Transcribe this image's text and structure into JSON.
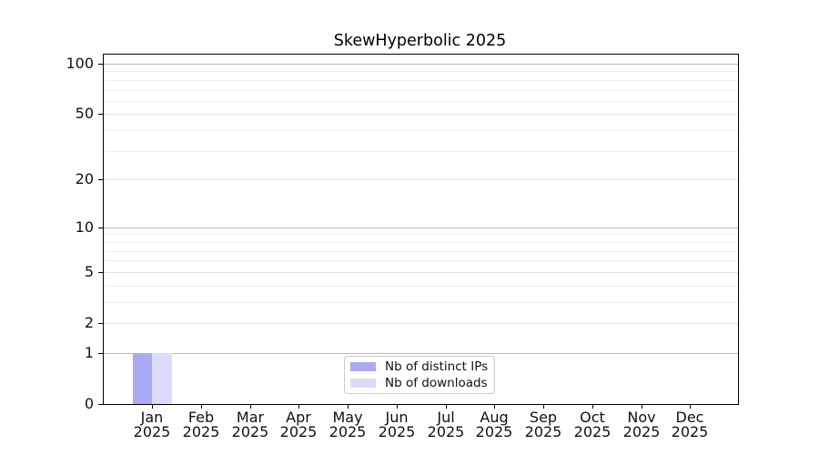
{
  "chart_data": {
    "type": "bar",
    "title": "SkewHyperbolic 2025",
    "scale": "log1p",
    "categories": [
      "Jan",
      "Feb",
      "Mar",
      "Apr",
      "May",
      "Jun",
      "Jul",
      "Aug",
      "Sep",
      "Oct",
      "Nov",
      "Dec"
    ],
    "x_sublabel": "2025",
    "series": [
      {
        "name": "Nb of distinct IPs",
        "color": "#aaaaf4",
        "values": [
          1,
          0,
          0,
          0,
          0,
          0,
          0,
          0,
          0,
          0,
          0,
          0
        ]
      },
      {
        "name": "Nb of downloads",
        "color": "#dbdbfa",
        "values": [
          1,
          0,
          0,
          0,
          0,
          0,
          0,
          0,
          0,
          0,
          0,
          0
        ]
      }
    ],
    "xlabel": "",
    "ylabel": "",
    "ylim": [
      0,
      113
    ],
    "y_ticks": [
      0,
      1,
      2,
      5,
      10,
      20,
      50,
      100
    ],
    "y_decade_lines": [
      1,
      10,
      100
    ],
    "y_minor_ticks": [
      3,
      4,
      6,
      7,
      8,
      9,
      30,
      40,
      60,
      70,
      80,
      90
    ],
    "grid": "horizontal",
    "legend_position": "lower center"
  },
  "colors": {
    "bar_distinct_ips": "#aaaaf4",
    "bar_downloads": "#dbdbfa",
    "grid_decade": "#b9b9b9",
    "grid_major": "#e2e2e2",
    "grid_minor": "#ededed",
    "spine": "#000000",
    "legend_border": "#c9c9c9",
    "background": "#ffffff"
  }
}
